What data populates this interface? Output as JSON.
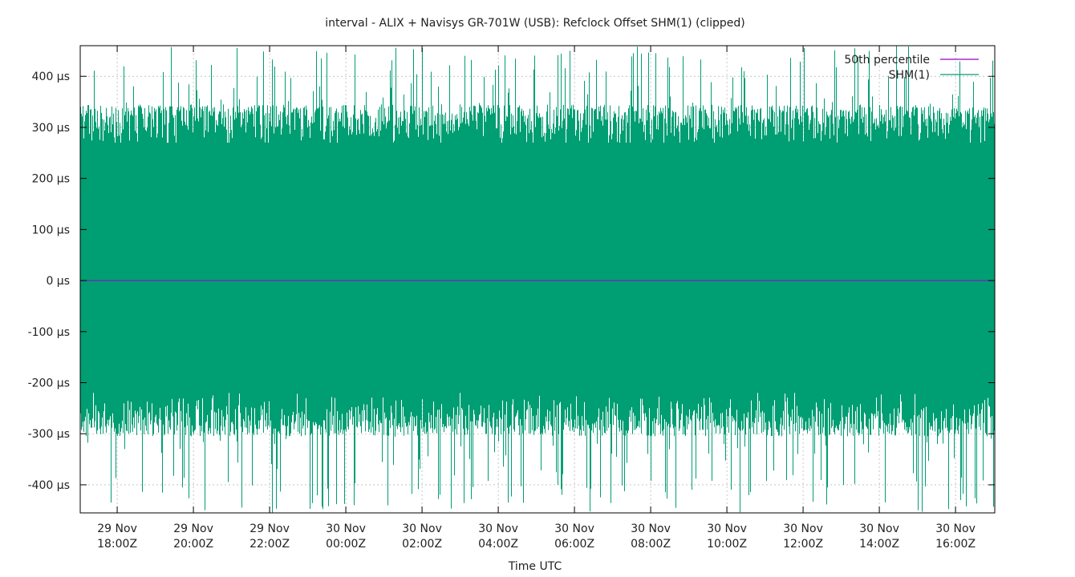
{
  "chart_data": {
    "type": "line",
    "title": "interval - ALIX + Navisys GR-701W (USB): Refclock Offset SHM(1) (clipped)",
    "xlabel": "Time UTC",
    "ylabel": "",
    "ylim": [
      -455,
      460
    ],
    "xlim": [
      "29 Nov 17:02Z",
      "30 Nov 17:02Z"
    ],
    "y_ticks": [
      400,
      300,
      200,
      100,
      0,
      -100,
      -200,
      -300,
      -400
    ],
    "y_tick_labels": [
      "400 µs",
      "300 µs",
      "200 µs",
      "100 µs",
      "0 µs",
      "-100 µs",
      "-200 µs",
      "-300 µs",
      "-400 µs"
    ],
    "x_ticks": [
      {
        "line1": "29 Nov",
        "line2": "18:00Z",
        "hours": 0.97
      },
      {
        "line1": "29 Nov",
        "line2": "20:00Z",
        "hours": 2.97
      },
      {
        "line1": "29 Nov",
        "line2": "22:00Z",
        "hours": 4.97
      },
      {
        "line1": "30 Nov",
        "line2": "00:00Z",
        "hours": 6.97
      },
      {
        "line1": "30 Nov",
        "line2": "02:00Z",
        "hours": 8.97
      },
      {
        "line1": "30 Nov",
        "line2": "04:00Z",
        "hours": 10.97
      },
      {
        "line1": "30 Nov",
        "line2": "06:00Z",
        "hours": 12.97
      },
      {
        "line1": "30 Nov",
        "line2": "08:00Z",
        "hours": 14.97
      },
      {
        "line1": "30 Nov",
        "line2": "10:00Z",
        "hours": 16.97
      },
      {
        "line1": "30 Nov",
        "line2": "12:00Z",
        "hours": 18.97
      },
      {
        "line1": "30 Nov",
        "line2": "14:00Z",
        "hours": 20.97
      },
      {
        "line1": "30 Nov",
        "line2": "16:00Z",
        "hours": 22.97
      }
    ],
    "x_range_hours": 24,
    "grid": true,
    "legend_position": "top-right",
    "series": [
      {
        "name": "50th percentile",
        "color": "#9400d3",
        "values": [
          0
        ]
      },
      {
        "name": "SHM(1)",
        "color": "#009e73",
        "typical_band": [
          -260,
          300
        ],
        "extreme_range": [
          -455,
          460
        ]
      }
    ]
  }
}
